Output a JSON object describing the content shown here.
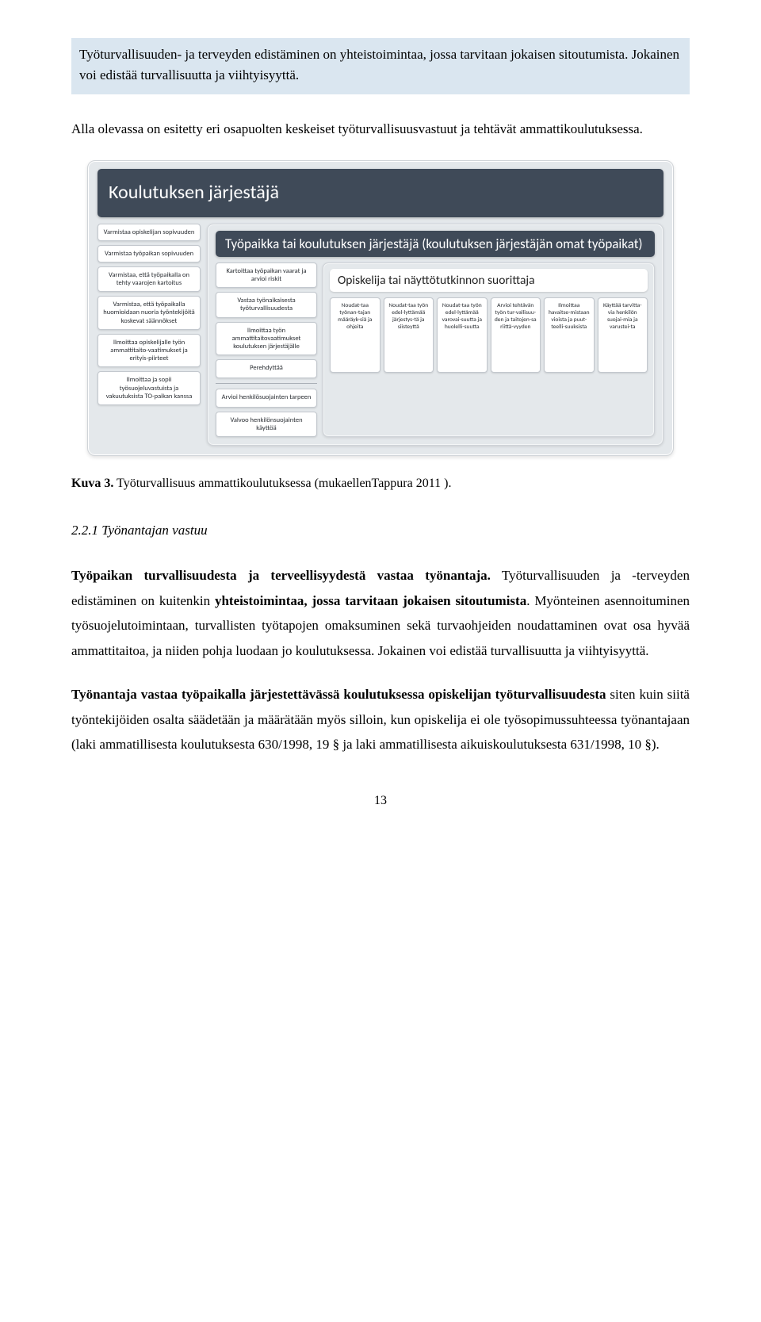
{
  "highlight": "Työturvallisuuden- ja terveyden edistäminen on yhteistoimintaa, jossa tarvitaan jokaisen sitoutumista. Jokainen voi edistää turvallisuutta ja viihtyisyyttä.",
  "intro": "Alla olevassa on esitetty eri osapuolten keskeiset työturvallisuusvastuut ja tehtävät ammattikoulutuksessa.",
  "diagram": {
    "outer_title": "Koulutuksen järjestäjä",
    "outer_items": [
      "Varmistaa opiskelijan sopivuuden",
      "Varmistaa työpaikan sopivuuden",
      "Varmistaa, että työpaikalla on tehty vaarojen kartoitus",
      "Varmistaa, että työpaikalla huomioidaan nuoria työntekijöitä koskevat säännökset",
      "Ilmoittaa opiskelijalle työn ammattitaito-vaatimukset ja erityis-piirteet",
      "Ilmoittaa ja sopii työsuojeluvastuista ja vakuutuksista TO-paikan kanssa"
    ],
    "mid_title": "Työpaikka tai koulutuksen järjestäjä (koulutuksen järjestäjän omat työpaikat)",
    "mid_items": [
      "Kartoittaa työpaikan vaarat ja arvioi riskit",
      "Vastaa työnaikaisesta työturvallisuudesta",
      "Ilmoittaa työn ammattitaitovaatimukset koulutuksen järjestäjälle",
      "Perehdyttää",
      "Arvioi henkilösuojainten tarpeen",
      "Valvoo henkilönsuojainten käyttöä"
    ],
    "inner_title": "Opiskelija tai näyttötutkinnon suorittaja",
    "inner_items": [
      "Noudat-taa työnan-tajan määräyk-siä ja ohjeita",
      "Noudat-taa työn edel-lyttämää järjestys-tä ja siisteyttä",
      "Noudat-taa työn edel-lyttämää varovai-suutta ja huolelli-suutta",
      "Arvioi tehtävän työn tur-vallisuu-den ja taitojen-sa riittä-vyyden",
      "Ilmoittaa havaitse-mistaan vioista ja puut-teelli-suuksista",
      "Käyttää tarvitta-via henkilön suojai-mia ja varustei-ta"
    ]
  },
  "caption_label": "Kuva 3.",
  "caption_text": " Työturvallisuus ammattikoulutuksessa (mukaellenTappura 2011 ).",
  "subheading": "2.2.1 Työnantajan vastuu",
  "p1_a": "Työpaikan turvallisuudesta ja terveellisyydestä vastaa työnantaja.",
  "p1_b": " Työturvallisuuden ja -terveyden edistäminen on kuitenkin ",
  "p1_c": "yhteistoimintaa, jossa tarvitaan jokaisen sitoutumista",
  "p1_d": ". Myönteinen asennoituminen työsuojelutoimintaan, turvallisten työtapojen omaksuminen sekä turvaohjeiden noudattaminen ovat osa hyvää ammattitaitoa, ja niiden pohja luodaan jo koulutuksessa. Jokainen voi edistää turvallisuutta ja viihtyisyyttä.",
  "p2_a": "Työnantaja vastaa työpaikalla järjestettävässä koulutuksessa opiskelijan työturvallisuudesta",
  "p2_b": " siten kuin siitä työntekijöiden osalta säädetään ja määrätään myös silloin, kun opiskelija ei ole työsopimussuhteessa työnantajaan (laki ammatillisesta koulutuksesta 630/1998, 19 § ja laki ammatillisesta aikuiskoulutuksesta 631/1998, 10 §).",
  "page_number": "13",
  "colors": {
    "highlight_bg": "#dae6f0",
    "panel_bg": "#e4e8eb",
    "dark_header": "#3f4a58",
    "box_bg": "#ffffff",
    "box_border": "#c3c8ce"
  }
}
